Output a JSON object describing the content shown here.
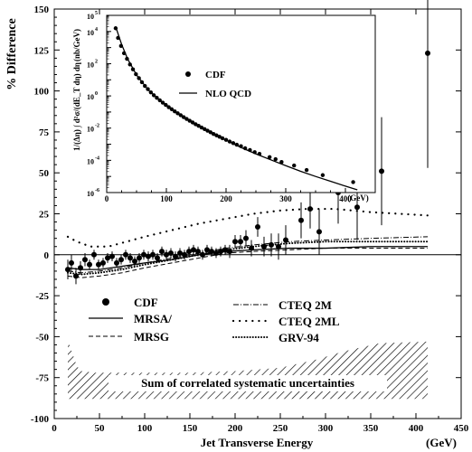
{
  "chart_data": [
    {
      "type": "scatter",
      "title": "",
      "xlabel": "Jet Transverse Energy",
      "xunit": "(GeV)",
      "ylabel": "% Difference",
      "xlim": [
        0,
        450
      ],
      "ylim": [
        -100,
        150
      ],
      "xticks": [
        0,
        50,
        100,
        150,
        200,
        250,
        300,
        350,
        400,
        450
      ],
      "yticks": [
        -100,
        -75,
        -50,
        -25,
        0,
        25,
        50,
        75,
        100,
        125,
        150
      ],
      "zero_line": true,
      "legend_position": "bottom-left",
      "series": [
        {
          "name": "CDF",
          "style": "points-with-errorbars",
          "points": [
            {
              "x": 15,
              "y": -9,
              "err": 6
            },
            {
              "x": 19,
              "y": -5,
              "err": 5
            },
            {
              "x": 24,
              "y": -13,
              "err": 5
            },
            {
              "x": 29,
              "y": -8,
              "err": 4
            },
            {
              "x": 34,
              "y": -3,
              "err": 4
            },
            {
              "x": 39,
              "y": -6,
              "err": 3
            },
            {
              "x": 44,
              "y": 0,
              "err": 3
            },
            {
              "x": 49,
              "y": -6,
              "err": 3
            },
            {
              "x": 54,
              "y": -5,
              "err": 3
            },
            {
              "x": 59,
              "y": -2,
              "err": 3
            },
            {
              "x": 64,
              "y": -1,
              "err": 3
            },
            {
              "x": 69,
              "y": -5,
              "err": 3
            },
            {
              "x": 74,
              "y": -3,
              "err": 3
            },
            {
              "x": 79,
              "y": 0,
              "err": 3
            },
            {
              "x": 84,
              "y": -2,
              "err": 3
            },
            {
              "x": 89,
              "y": -4,
              "err": 3
            },
            {
              "x": 94,
              "y": -2,
              "err": 3
            },
            {
              "x": 99,
              "y": 0,
              "err": 3
            },
            {
              "x": 104,
              "y": -1,
              "err": 3
            },
            {
              "x": 109,
              "y": 0,
              "err": 3
            },
            {
              "x": 114,
              "y": -2,
              "err": 3
            },
            {
              "x": 119,
              "y": 2,
              "err": 3
            },
            {
              "x": 124,
              "y": 0,
              "err": 3
            },
            {
              "x": 129,
              "y": 1,
              "err": 3
            },
            {
              "x": 134,
              "y": -1,
              "err": 3
            },
            {
              "x": 139,
              "y": 1,
              "err": 3
            },
            {
              "x": 144,
              "y": 0,
              "err": 3
            },
            {
              "x": 149,
              "y": 2,
              "err": 3
            },
            {
              "x": 154,
              "y": 3,
              "err": 3
            },
            {
              "x": 159,
              "y": 2,
              "err": 3
            },
            {
              "x": 164,
              "y": 0,
              "err": 3
            },
            {
              "x": 169,
              "y": 3,
              "err": 3
            },
            {
              "x": 174,
              "y": 2,
              "err": 3
            },
            {
              "x": 179,
              "y": 1,
              "err": 3
            },
            {
              "x": 184,
              "y": 2,
              "err": 3
            },
            {
              "x": 189,
              "y": 3,
              "err": 3
            },
            {
              "x": 194,
              "y": 2,
              "err": 4
            },
            {
              "x": 200,
              "y": 8,
              "err": 4
            },
            {
              "x": 206,
              "y": 8,
              "err": 4
            },
            {
              "x": 212,
              "y": 10,
              "err": 5
            },
            {
              "x": 218,
              "y": 4,
              "err": 5
            },
            {
              "x": 225,
              "y": 17,
              "err": 6
            },
            {
              "x": 232,
              "y": 5,
              "err": 6
            },
            {
              "x": 240,
              "y": 6,
              "err": 7
            },
            {
              "x": 248,
              "y": 5,
              "err": 8
            },
            {
              "x": 256,
              "y": 9,
              "err": 9
            },
            {
              "x": 273,
              "y": 21,
              "err": 11
            },
            {
              "x": 283,
              "y": 28,
              "err": 12
            },
            {
              "x": 293,
              "y": 14,
              "err": 14
            },
            {
              "x": 314,
              "y": 38,
              "err": 19
            },
            {
              "x": 335,
              "y": 29,
              "err": 20
            },
            {
              "x": 362,
              "y": 51,
              "err": 33
            },
            {
              "x": 413,
              "y": 123,
              "err": 70
            }
          ]
        },
        {
          "name": "MRSA/",
          "style": "solid",
          "points": [
            [
              15,
              -8
            ],
            [
              30,
              -9
            ],
            [
              50,
              -9
            ],
            [
              75,
              -7
            ],
            [
              100,
              -5
            ],
            [
              130,
              -3
            ],
            [
              160,
              0
            ],
            [
              190,
              2
            ],
            [
              220,
              3
            ],
            [
              260,
              4
            ],
            [
              300,
              4
            ],
            [
              350,
              5
            ],
            [
              413,
              5
            ]
          ]
        },
        {
          "name": "MRSG",
          "style": "dashed",
          "points": [
            [
              15,
              -13
            ],
            [
              30,
              -14
            ],
            [
              50,
              -13
            ],
            [
              75,
              -11
            ],
            [
              100,
              -8
            ],
            [
              130,
              -5
            ],
            [
              160,
              -2
            ],
            [
              190,
              1
            ],
            [
              220,
              2
            ],
            [
              260,
              3
            ],
            [
              300,
              4
            ],
            [
              350,
              4
            ],
            [
              413,
              4
            ]
          ]
        },
        {
          "name": "CTEQ 2M",
          "style": "dash-dot-marked",
          "points": [
            [
              15,
              -10
            ],
            [
              30,
              -11
            ],
            [
              50,
              -10
            ],
            [
              75,
              -8
            ],
            [
              100,
              -5
            ],
            [
              130,
              -2
            ],
            [
              160,
              1
            ],
            [
              190,
              4
            ],
            [
              220,
              6
            ],
            [
              260,
              8
            ],
            [
              300,
              9
            ],
            [
              350,
              10
            ],
            [
              413,
              11
            ]
          ]
        },
        {
          "name": "CTEQ 2ML",
          "style": "sparse-dotted",
          "points": [
            [
              15,
              11
            ],
            [
              25,
              8
            ],
            [
              40,
              5
            ],
            [
              60,
              5
            ],
            [
              80,
              8
            ],
            [
              100,
              11
            ],
            [
              130,
              15
            ],
            [
              160,
              19
            ],
            [
              190,
              22
            ],
            [
              220,
              25
            ],
            [
              250,
              27
            ],
            [
              280,
              28
            ],
            [
              310,
              28
            ],
            [
              350,
              26
            ],
            [
              413,
              24
            ]
          ]
        },
        {
          "name": "GRV-94",
          "style": "dense-dotted",
          "points": [
            [
              15,
              -11
            ],
            [
              30,
              -12
            ],
            [
              50,
              -11
            ],
            [
              75,
              -9
            ],
            [
              100,
              -6
            ],
            [
              130,
              -3
            ],
            [
              160,
              0
            ],
            [
              190,
              3
            ],
            [
              220,
              5
            ],
            [
              260,
              7
            ],
            [
              300,
              8
            ],
            [
              350,
              8
            ],
            [
              413,
              8
            ]
          ]
        }
      ],
      "band": {
        "label": "Sum of correlated systematic uncertainties",
        "style": "hatched",
        "lower": [
          [
            15,
            -88
          ],
          [
            30,
            -88
          ],
          [
            60,
            -88
          ],
          [
            413,
            -88
          ]
        ],
        "upper": [
          [
            15,
            -52
          ],
          [
            20,
            -60
          ],
          [
            25,
            -68
          ],
          [
            30,
            -71
          ],
          [
            45,
            -72
          ],
          [
            70,
            -72
          ],
          [
            150,
            -72
          ],
          [
            200,
            -71
          ],
          [
            250,
            -69
          ],
          [
            290,
            -64
          ],
          [
            320,
            -59
          ],
          [
            360,
            -54
          ],
          [
            413,
            -53
          ]
        ]
      }
    },
    {
      "type": "scatter",
      "title": "",
      "inset": true,
      "xlabel": "",
      "xunit": "(GeV)",
      "ylabel": "1/(Δη) ∫ d²σ/(dE_T dη) dη",
      "yunit": "(nb/GeV)",
      "xlim": [
        0,
        450
      ],
      "ylim_log10": [
        -6,
        5
      ],
      "log_y": true,
      "xticks": [
        0,
        100,
        200,
        300,
        400
      ],
      "ytick_exponents": [
        -6,
        -4,
        -2,
        0,
        2,
        4,
        5
      ],
      "legend_position": "upper-middle",
      "series": [
        {
          "name": "CDF",
          "style": "points",
          "points": [
            [
              15,
              4.2
            ],
            [
              19,
              3.6
            ],
            [
              24,
              3.1
            ],
            [
              29,
              2.65
            ],
            [
              34,
              2.3
            ],
            [
              39,
              1.95
            ],
            [
              44,
              1.65
            ],
            [
              49,
              1.35
            ],
            [
              54,
              1.1
            ],
            [
              59,
              0.85
            ],
            [
              64,
              0.62
            ],
            [
              69,
              0.42
            ],
            [
              74,
              0.22
            ],
            [
              79,
              0.04
            ],
            [
              84,
              -0.12
            ],
            [
              89,
              -0.27
            ],
            [
              94,
              -0.42
            ],
            [
              99,
              -0.56
            ],
            [
              104,
              -0.7
            ],
            [
              109,
              -0.83
            ],
            [
              114,
              -0.96
            ],
            [
              119,
              -1.08
            ],
            [
              124,
              -1.2
            ],
            [
              129,
              -1.32
            ],
            [
              134,
              -1.43
            ],
            [
              139,
              -1.54
            ],
            [
              144,
              -1.65
            ],
            [
              149,
              -1.76
            ],
            [
              154,
              -1.86
            ],
            [
              159,
              -1.96
            ],
            [
              164,
              -2.06
            ],
            [
              169,
              -2.16
            ],
            [
              174,
              -2.26
            ],
            [
              179,
              -2.36
            ],
            [
              184,
              -2.45
            ],
            [
              189,
              -2.54
            ],
            [
              194,
              -2.63
            ],
            [
              200,
              -2.73
            ],
            [
              206,
              -2.83
            ],
            [
              212,
              -2.93
            ],
            [
              218,
              -3.03
            ],
            [
              225,
              -3.12
            ],
            [
              232,
              -3.25
            ],
            [
              240,
              -3.36
            ],
            [
              248,
              -3.49
            ],
            [
              256,
              -3.6
            ],
            [
              273,
              -3.8
            ],
            [
              283,
              -3.93
            ],
            [
              293,
              -4.1
            ],
            [
              314,
              -4.32
            ],
            [
              335,
              -4.6
            ],
            [
              362,
              -4.92
            ],
            [
              413,
              -5.35
            ]
          ]
        },
        {
          "name": "NLO QCD",
          "style": "solid",
          "points": [
            [
              15,
              4.3
            ],
            [
              25,
              3.2
            ],
            [
              35,
              2.3
            ],
            [
              50,
              1.3
            ],
            [
              70,
              0.35
            ],
            [
              90,
              -0.3
            ],
            [
              110,
              -0.85
            ],
            [
              130,
              -1.35
            ],
            [
              150,
              -1.8
            ],
            [
              175,
              -2.3
            ],
            [
              200,
              -2.75
            ],
            [
              225,
              -3.2
            ],
            [
              250,
              -3.6
            ],
            [
              275,
              -3.97
            ],
            [
              300,
              -4.33
            ],
            [
              325,
              -4.68
            ],
            [
              350,
              -5.0
            ],
            [
              375,
              -5.3
            ],
            [
              400,
              -5.6
            ],
            [
              420,
              -5.83
            ]
          ]
        }
      ]
    }
  ],
  "main_tick_labels_x": [
    "0",
    "50",
    "100",
    "150",
    "200",
    "250",
    "300",
    "350",
    "400",
    "450"
  ],
  "main_tick_labels_y": [
    "-100",
    "-75",
    "-50",
    "-25",
    "0",
    "25",
    "50",
    "75",
    "100",
    "125",
    "150"
  ],
  "inset_tick_labels_x": [
    "0",
    "100",
    "200",
    "300",
    "400"
  ],
  "inset_tick_base": "10",
  "inset_tick_exponents": [
    "-6",
    "-4",
    "-2",
    "0",
    "2",
    "4",
    "5"
  ],
  "colors": {
    "ink": "#000000",
    "background": "#ffffff"
  }
}
